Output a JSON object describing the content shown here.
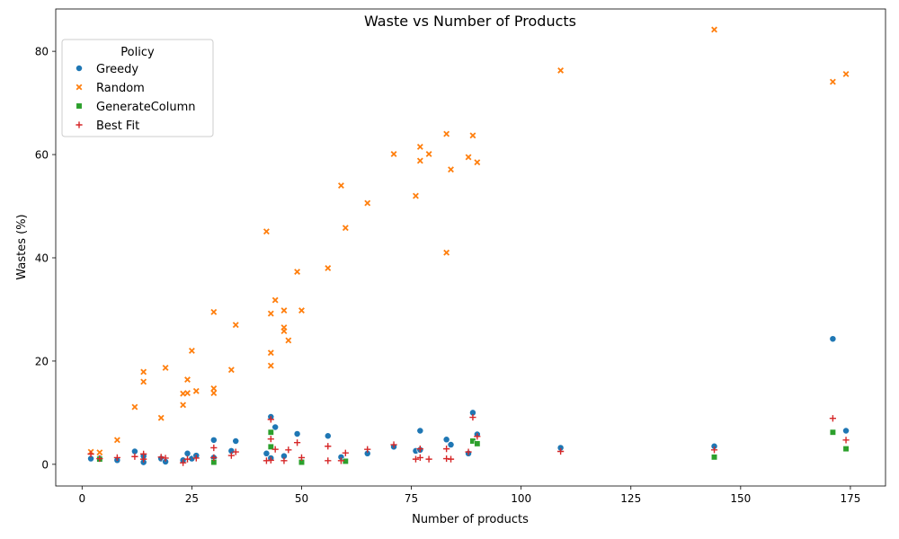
{
  "chart_data": {
    "type": "scatter",
    "title": "Waste vs Number of Products",
    "xlabel": "Number of products",
    "ylabel": "Wastes (%)",
    "xlim": [
      -6,
      183
    ],
    "ylim": [
      -4.2,
      88.2
    ],
    "xticks": [
      0,
      25,
      50,
      75,
      100,
      125,
      150,
      175
    ],
    "yticks": [
      0,
      20,
      40,
      60,
      80
    ],
    "grid": false,
    "legend": {
      "title": "Policy",
      "placement": "top-left"
    },
    "series": [
      {
        "name": "Greedy",
        "marker": "circle",
        "color": "#1f77b4",
        "points": [
          [
            2,
            1.1
          ],
          [
            4,
            1.2
          ],
          [
            8,
            0.8
          ],
          [
            12,
            2.5
          ],
          [
            14,
            0.4
          ],
          [
            14,
            1.6
          ],
          [
            18,
            1.1
          ],
          [
            19,
            0.5
          ],
          [
            23,
            0.8
          ],
          [
            24,
            2.1
          ],
          [
            25,
            1.1
          ],
          [
            26,
            1.7
          ],
          [
            30,
            4.7
          ],
          [
            30,
            1.3
          ],
          [
            34,
            2.6
          ],
          [
            35,
            4.5
          ],
          [
            42,
            2.1
          ],
          [
            43,
            9.2
          ],
          [
            43,
            1.2
          ],
          [
            44,
            7.2
          ],
          [
            46,
            1.6
          ],
          [
            49,
            5.9
          ],
          [
            50,
            0.5
          ],
          [
            56,
            5.5
          ],
          [
            59,
            1.4
          ],
          [
            65,
            2.1
          ],
          [
            71,
            3.4
          ],
          [
            76,
            2.6
          ],
          [
            77,
            6.5
          ],
          [
            77,
            2.8
          ],
          [
            83,
            4.8
          ],
          [
            84,
            3.8
          ],
          [
            88,
            2.1
          ],
          [
            89,
            10.0
          ],
          [
            90,
            5.8
          ],
          [
            109,
            3.2
          ],
          [
            144,
            3.5
          ],
          [
            171,
            24.3
          ],
          [
            174,
            6.5
          ]
        ]
      },
      {
        "name": "Random",
        "marker": "x",
        "color": "#ff7f0e",
        "points": [
          [
            2,
            2.4
          ],
          [
            4,
            2.3
          ],
          [
            8,
            4.7
          ],
          [
            12,
            11.1
          ],
          [
            14,
            17.9
          ],
          [
            14,
            16.0
          ],
          [
            18,
            9.0
          ],
          [
            19,
            18.7
          ],
          [
            23,
            11.5
          ],
          [
            23,
            13.7
          ],
          [
            24,
            16.4
          ],
          [
            24,
            13.8
          ],
          [
            25,
            22.0
          ],
          [
            26,
            14.2
          ],
          [
            30,
            29.5
          ],
          [
            30,
            14.7
          ],
          [
            30,
            13.8
          ],
          [
            34,
            18.3
          ],
          [
            35,
            27.0
          ],
          [
            42,
            45.1
          ],
          [
            43,
            29.2
          ],
          [
            43,
            21.6
          ],
          [
            43,
            19.1
          ],
          [
            44,
            31.8
          ],
          [
            46,
            29.8
          ],
          [
            46,
            26.5
          ],
          [
            46,
            25.8
          ],
          [
            47,
            24.0
          ],
          [
            49,
            37.3
          ],
          [
            50,
            29.8
          ],
          [
            56,
            38.0
          ],
          [
            59,
            54.0
          ],
          [
            60,
            45.8
          ],
          [
            65,
            50.6
          ],
          [
            71,
            60.1
          ],
          [
            76,
            52.0
          ],
          [
            77,
            61.5
          ],
          [
            77,
            58.8
          ],
          [
            79,
            60.1
          ],
          [
            83,
            64.0
          ],
          [
            83,
            41.0
          ],
          [
            84,
            57.1
          ],
          [
            88,
            59.5
          ],
          [
            89,
            63.7
          ],
          [
            90,
            58.5
          ],
          [
            109,
            76.3
          ],
          [
            144,
            84.2
          ],
          [
            171,
            74.1
          ],
          [
            174,
            75.6
          ]
        ]
      },
      {
        "name": "GenerateColumn",
        "marker": "square",
        "color": "#2ca02c",
        "points": [
          [
            4,
            1.0
          ],
          [
            30,
            0.4
          ],
          [
            43,
            6.2
          ],
          [
            43,
            3.4
          ],
          [
            50,
            0.4
          ],
          [
            60,
            0.6
          ],
          [
            89,
            4.5
          ],
          [
            90,
            4.0
          ],
          [
            144,
            1.4
          ],
          [
            171,
            6.2
          ],
          [
            174,
            3.0
          ]
        ]
      },
      {
        "name": "Best Fit",
        "marker": "plus",
        "color": "#d62728",
        "points": [
          [
            2,
            2.0
          ],
          [
            4,
            1.1
          ],
          [
            8,
            1.3
          ],
          [
            12,
            1.5
          ],
          [
            14,
            2.0
          ],
          [
            14,
            1.0
          ],
          [
            18,
            1.4
          ],
          [
            19,
            1.2
          ],
          [
            23,
            0.3
          ],
          [
            24,
            1.0
          ],
          [
            26,
            1.2
          ],
          [
            30,
            3.2
          ],
          [
            30,
            1.3
          ],
          [
            34,
            1.7
          ],
          [
            35,
            2.4
          ],
          [
            42,
            0.7
          ],
          [
            43,
            8.7
          ],
          [
            43,
            4.9
          ],
          [
            43,
            0.8
          ],
          [
            44,
            2.9
          ],
          [
            46,
            0.7
          ],
          [
            47,
            2.8
          ],
          [
            49,
            4.2
          ],
          [
            50,
            1.3
          ],
          [
            56,
            3.5
          ],
          [
            56,
            0.7
          ],
          [
            59,
            0.7
          ],
          [
            60,
            2.2
          ],
          [
            65,
            2.9
          ],
          [
            71,
            3.8
          ],
          [
            76,
            1.0
          ],
          [
            77,
            3.0
          ],
          [
            77,
            1.3
          ],
          [
            79,
            1.0
          ],
          [
            83,
            3.0
          ],
          [
            83,
            1.1
          ],
          [
            84,
            1.0
          ],
          [
            88,
            2.4
          ],
          [
            89,
            9.1
          ],
          [
            90,
            5.4
          ],
          [
            109,
            2.5
          ],
          [
            144,
            2.8
          ],
          [
            171,
            8.9
          ],
          [
            174,
            4.7
          ]
        ]
      }
    ]
  }
}
